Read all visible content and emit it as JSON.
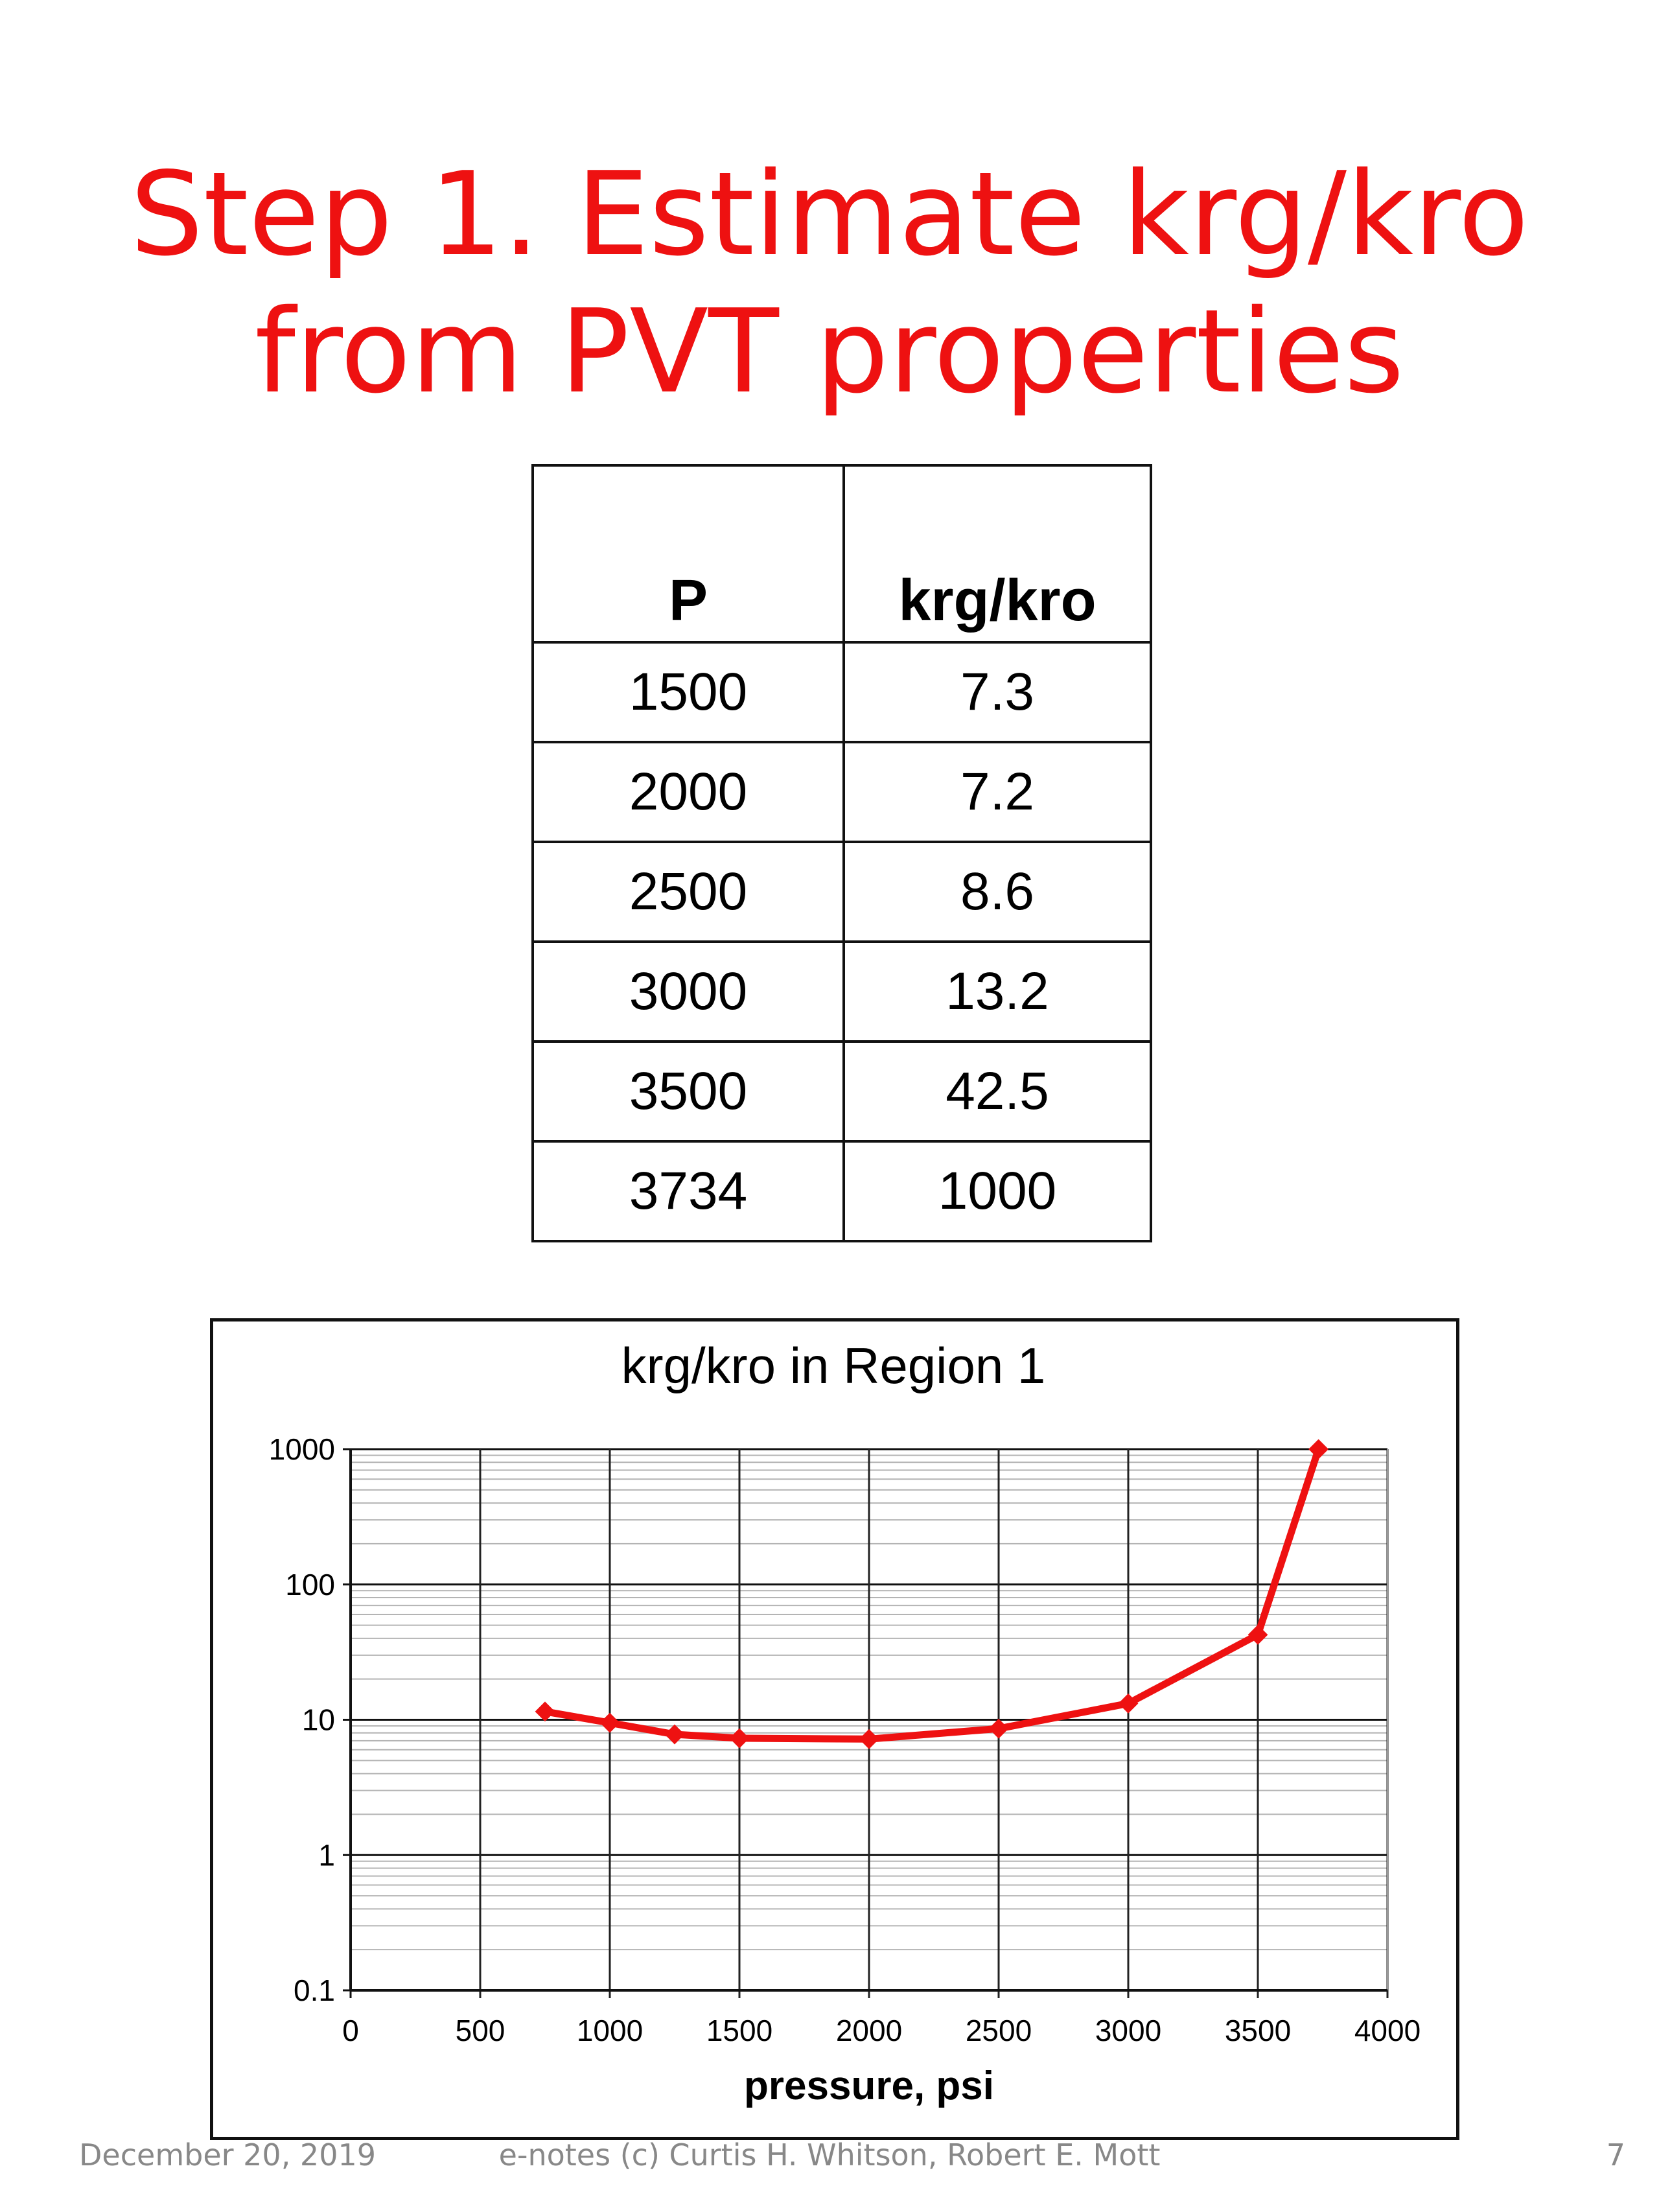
{
  "slide": {
    "title_line1": "Step 1. Estimate krg/kro",
    "title_line2": "from PVT properties",
    "title_color": "#ee1111"
  },
  "table": {
    "headers": [
      "P",
      "krg/kro"
    ],
    "rows": [
      [
        "1500",
        "7.3"
      ],
      [
        "2000",
        "7.2"
      ],
      [
        "2500",
        "8.6"
      ],
      [
        "3000",
        "13.2"
      ],
      [
        "3500",
        "42.5"
      ],
      [
        "3734",
        "1000"
      ]
    ]
  },
  "chart_data": {
    "type": "line",
    "title": "krg/kro in Region 1",
    "xlabel": "pressure, psi",
    "ylabel": "",
    "xlim": [
      0,
      4000
    ],
    "ylim": [
      0.1,
      1000
    ],
    "yscale": "log",
    "grid": true,
    "x_ticks": [
      "0",
      "500",
      "1000",
      "1500",
      "2000",
      "2500",
      "3000",
      "3500",
      "4000"
    ],
    "y_ticks": [
      "0.1",
      "1",
      "10",
      "100",
      "1000"
    ],
    "series": [
      {
        "color": "#ee1111",
        "marker": "diamond",
        "x": [
          750,
          1000,
          1250,
          1500,
          2000,
          2500,
          3000,
          3500,
          3734
        ],
        "y": [
          11.5,
          9.5,
          7.8,
          7.3,
          7.2,
          8.6,
          13.2,
          42.5,
          1000
        ]
      }
    ]
  },
  "footer": {
    "date": "December 20, 2019",
    "credit": "e-notes (c) Curtis H. Whitson, Robert E. Mott",
    "page": "7"
  }
}
